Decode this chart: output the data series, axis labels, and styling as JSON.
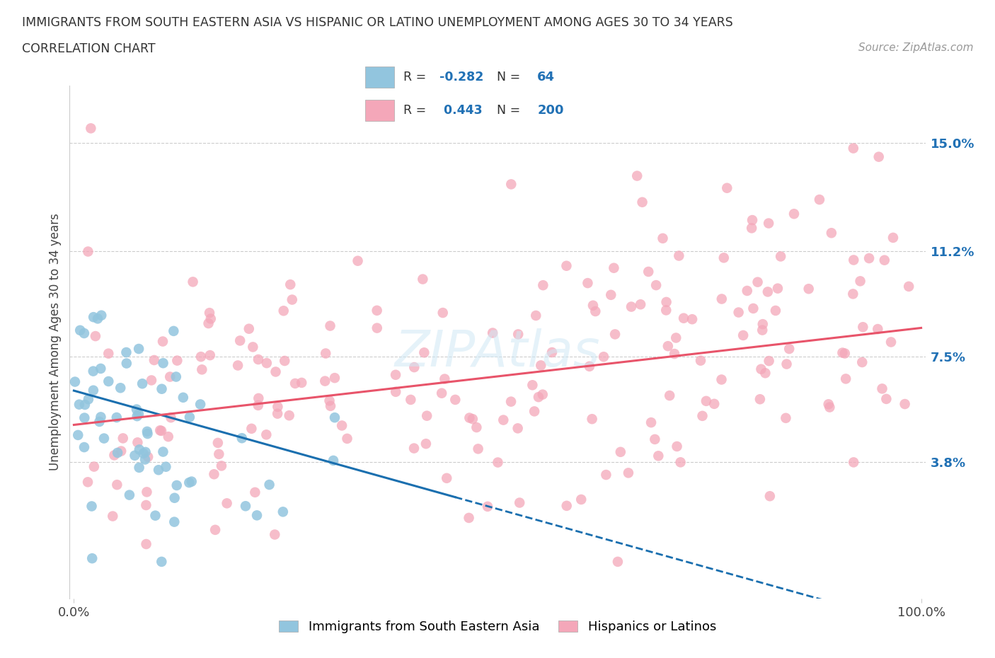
{
  "title": "IMMIGRANTS FROM SOUTH EASTERN ASIA VS HISPANIC OR LATINO UNEMPLOYMENT AMONG AGES 30 TO 34 YEARS",
  "subtitle": "CORRELATION CHART",
  "source": "Source: ZipAtlas.com",
  "ylabel": "Unemployment Among Ages 30 to 34 years",
  "x_min": 0.0,
  "x_max": 1.0,
  "y_min": -0.01,
  "y_max": 0.17,
  "y_ticks": [
    0.038,
    0.075,
    0.112,
    0.15
  ],
  "y_tick_labels": [
    "3.8%",
    "7.5%",
    "11.2%",
    "15.0%"
  ],
  "x_tick_labels": [
    "0.0%",
    "100.0%"
  ],
  "blue_R": -0.282,
  "blue_N": 64,
  "pink_R": 0.443,
  "pink_N": 200,
  "blue_color": "#92c5de",
  "pink_color": "#f4a7b9",
  "blue_line_color": "#1a6faf",
  "pink_line_color": "#e8546a",
  "legend1_label": "Immigrants from South Eastern Asia",
  "legend2_label": "Hispanics or Latinos",
  "watermark": "ZIPAtlas",
  "background_color": "#ffffff",
  "seed_blue": 12,
  "seed_pink": 99,
  "blue_line_x_solid_end": 0.45,
  "blue_line_x_full_end": 1.0,
  "blue_line_y_start": 0.063,
  "blue_line_y_end": -0.02,
  "pink_line_x_start": 0.0,
  "pink_line_x_end": 1.0,
  "pink_line_y_start": 0.051,
  "pink_line_y_end": 0.085
}
